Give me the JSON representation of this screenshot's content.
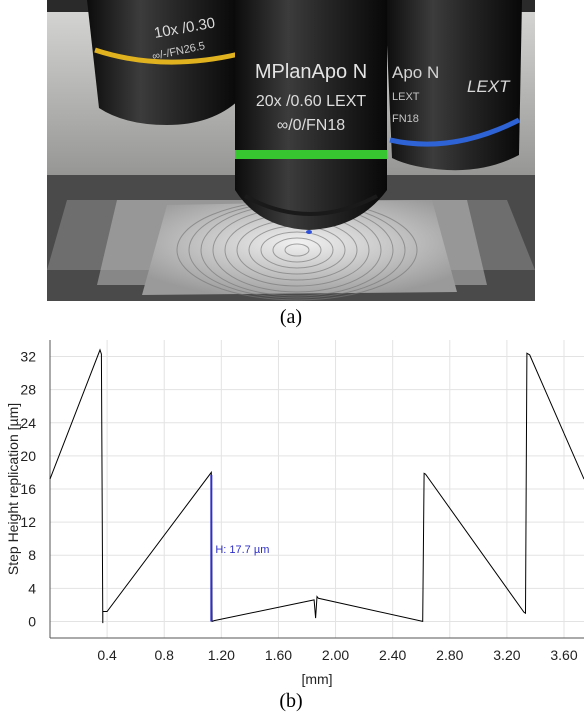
{
  "figure": {
    "caption_a": "(a)",
    "caption_b": "(b)"
  },
  "photo": {
    "objective_center": {
      "line1": "MPlanApo N",
      "line2": "20x /0.60 LEXT",
      "line3": "∞/0/FN18",
      "ring_color": "#37c62f"
    },
    "objective_left": {
      "line1": "10x /0.30",
      "line2": "∞/-/FN26.5",
      "ring_color": "#e0b21f"
    },
    "objective_right": {
      "line1": "Apo N",
      "line2": "LEXT",
      "line3": "FN18",
      "brand": "LEXT",
      "ring_color": "#2e63d6"
    }
  },
  "chart_data": {
    "type": "line",
    "ylabel": "Step Height replication [µm]",
    "xlabel": "[mm]",
    "xlim": [
      0.0,
      3.74
    ],
    "ylim": [
      -2,
      34
    ],
    "x_ticks": [
      "0.4",
      "0.8",
      "1.20",
      "1.60",
      "2.00",
      "2.40",
      "2.80",
      "3.20",
      "3.60"
    ],
    "x_tick_values": [
      0.4,
      0.8,
      1.2,
      1.6,
      2.0,
      2.4,
      2.8,
      3.2,
      3.6
    ],
    "y_ticks": [
      "0",
      "4",
      "8",
      "12",
      "16",
      "20",
      "24",
      "28",
      "32"
    ],
    "y_tick_values": [
      0,
      4,
      8,
      12,
      16,
      20,
      24,
      28,
      32
    ],
    "grid": true,
    "series": [
      {
        "color": "#000000",
        "x": [
          0.0,
          0.35,
          0.36,
          0.37,
          0.37,
          0.4,
          1.13,
          1.135,
          1.15,
          1.85,
          1.86,
          1.87,
          1.88,
          2.61,
          2.62,
          2.63,
          3.32,
          3.33,
          3.34,
          3.36,
          3.74
        ],
        "y": [
          17.2,
          32.8,
          32.3,
          -0.2,
          1.2,
          1.2,
          18.0,
          0.0,
          0.1,
          2.6,
          0.4,
          3.0,
          2.8,
          0.0,
          17.9,
          17.8,
          1.1,
          1.0,
          32.4,
          32.2,
          17.2
        ]
      }
    ],
    "annotation": {
      "text": "H: 17.7 µm",
      "color": "#2e2ec8",
      "x": 1.13,
      "y_from": 0.0,
      "y_to": 17.7
    }
  }
}
